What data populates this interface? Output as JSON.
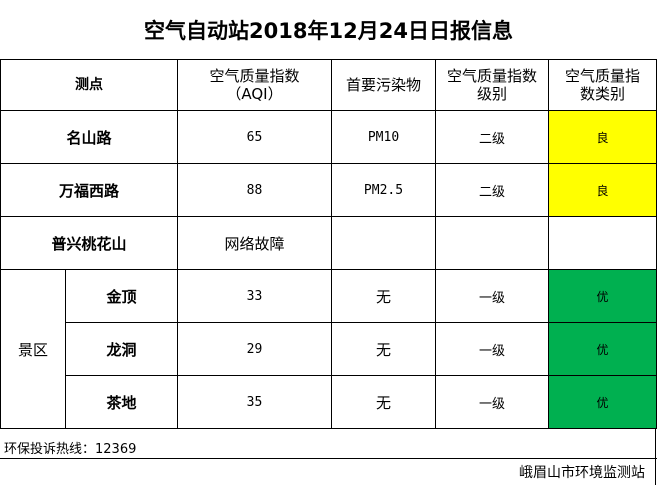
{
  "title": "空气自动站2018年12月24日日报信息",
  "headers": {
    "station": "测点",
    "aqi_line1": "空气质量指数",
    "aqi_line2": "（AQI）",
    "pollutant": "首要污染物",
    "level_line1": "空气质量指数",
    "level_line2": "级别",
    "category_line1": "空气质量指",
    "category_line2": "数类别"
  },
  "rows": {
    "mingshan": {
      "station": "名山路",
      "aqi": "65",
      "pollutant": "PM10",
      "level": "二级",
      "category": "良"
    },
    "wanfu": {
      "station": "万福西路",
      "aqi": "88",
      "pollutant": "PM2.5",
      "level": "二级",
      "category": "良"
    },
    "puxing": {
      "station": "普兴桃花山",
      "status": "网络故障"
    }
  },
  "scenic": {
    "region": "景区",
    "rows": [
      {
        "station": "金顶",
        "aqi": "33",
        "pollutant": "无",
        "level": "一级",
        "category": "优"
      },
      {
        "station": "龙洞",
        "aqi": "29",
        "pollutant": "无",
        "level": "一级",
        "category": "优"
      },
      {
        "station": "茶地",
        "aqi": "35",
        "pollutant": "无",
        "level": "一级",
        "category": "优"
      }
    ]
  },
  "hotline": "环保投诉热线：12369",
  "organization": "峨眉山市环境监测站",
  "colors": {
    "good": "#ffff00",
    "excellent": "#00b050"
  }
}
